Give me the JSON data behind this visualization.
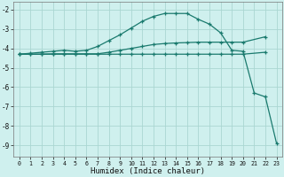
{
  "xlabel": "Humidex (Indice chaleur)",
  "bg_color": "#cff0ee",
  "grid_color": "#aad6d2",
  "line_color": "#1a7a6e",
  "xlim": [
    -0.5,
    23.5
  ],
  "ylim": [
    -9.6,
    -1.6
  ],
  "yticks": [
    -9,
    -8,
    -7,
    -6,
    -5,
    -4,
    -3,
    -2
  ],
  "xticks": [
    0,
    1,
    2,
    3,
    4,
    5,
    6,
    7,
    8,
    9,
    10,
    11,
    12,
    13,
    14,
    15,
    16,
    17,
    18,
    19,
    20,
    21,
    22,
    23
  ],
  "line1_x": [
    0,
    1,
    2,
    3,
    4,
    5,
    6,
    7,
    8,
    9,
    10,
    11,
    12,
    13,
    14,
    15,
    16,
    17,
    18,
    19,
    20,
    21,
    22,
    23
  ],
  "line1_y": [
    -4.3,
    -4.25,
    -4.2,
    -4.15,
    -4.1,
    -4.15,
    -4.1,
    -3.9,
    -3.6,
    -3.3,
    -2.95,
    -2.6,
    -2.35,
    -2.2,
    -2.2,
    -2.2,
    -2.5,
    -2.75,
    -3.2,
    -4.1,
    -4.15,
    -6.3,
    -6.5,
    -8.9
  ],
  "line2_x": [
    0,
    1,
    2,
    3,
    4,
    5,
    6,
    7,
    8,
    9,
    10,
    11,
    12,
    13,
    14,
    15,
    16,
    17,
    18,
    19,
    20,
    22
  ],
  "line2_y": [
    -4.3,
    -4.3,
    -4.3,
    -4.28,
    -4.28,
    -4.28,
    -4.28,
    -4.28,
    -4.2,
    -4.1,
    -4.0,
    -3.9,
    -3.8,
    -3.75,
    -3.72,
    -3.7,
    -3.68,
    -3.68,
    -3.68,
    -3.68,
    -3.68,
    -3.4
  ],
  "line3_x": [
    0,
    1,
    2,
    3,
    4,
    5,
    6,
    7,
    8,
    9,
    10,
    11,
    12,
    13,
    14,
    15,
    16,
    17,
    18,
    19,
    20,
    22
  ],
  "line3_y": [
    -4.3,
    -4.3,
    -4.3,
    -4.3,
    -4.3,
    -4.3,
    -4.3,
    -4.3,
    -4.3,
    -4.3,
    -4.3,
    -4.3,
    -4.3,
    -4.3,
    -4.3,
    -4.3,
    -4.3,
    -4.3,
    -4.3,
    -4.3,
    -4.3,
    -4.2
  ]
}
